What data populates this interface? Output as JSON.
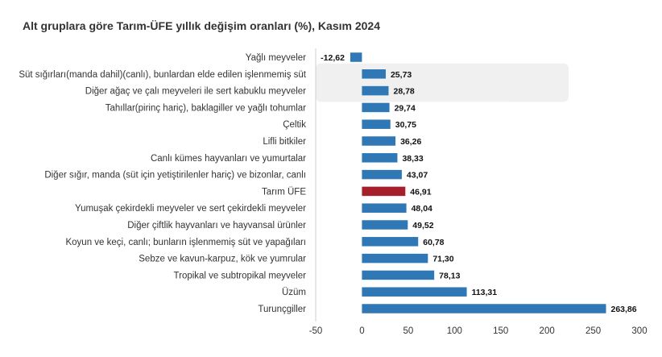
{
  "chart_data": {
    "type": "bar",
    "orientation": "horizontal",
    "title": "Alt gruplara göre Tarım-ÜFE yıllık değişim oranları (%), Kasım 2024",
    "xlabel": "",
    "ylabel": "",
    "xlim": [
      -50,
      300
    ],
    "xticks": [
      -50,
      0,
      50,
      100,
      150,
      200,
      250,
      300
    ],
    "grid": false,
    "legend": "none",
    "colors": {
      "bar": "#2f78b5",
      "highlight": "#a5202a",
      "band": "#f0f0f0"
    },
    "highlight_category": "Tarım ÜFE",
    "categories": [
      "Yağlı meyveler",
      "Süt sığırları(manda dahil)(canlı), bunlardan elde edilen işlenmemiş süt",
      "Diğer ağaç ve çalı meyveleri ile sert kabuklu meyveler",
      "Tahıllar(pirinç hariç), baklagiller ve yağlı tohumlar",
      "Çeltik",
      "Lifli bitkiler",
      "Canlı kümes hayvanları ve yumurtalar",
      "Diğer sığır, manda (süt için yetiştirilenler hariç) ve bizonlar, canlı",
      "Tarım ÜFE",
      "Yumuşak çekirdekli meyveler ve sert çekirdekli meyveler",
      "Diğer çiftlik hayvanları ve hayvansal ürünler",
      "Koyun ve keçi, canlı; bunların işlenmemiş süt ve yapağıları",
      "Sebze ve kavun-karpuz, kök ve yumrular",
      "Tropikal ve subtropikal meyveler",
      "Üzüm",
      "Turunçgiller"
    ],
    "values": [
      -12.62,
      25.73,
      28.78,
      29.74,
      30.75,
      36.26,
      38.33,
      43.07,
      46.91,
      48.04,
      49.52,
      60.78,
      71.3,
      78.13,
      113.31,
      263.86
    ],
    "value_labels": [
      "-12,62",
      "25,73",
      "28,78",
      "29,74",
      "30,75",
      "36,26",
      "38,33",
      "43,07",
      "46,91",
      "48,04",
      "49,52",
      "60,78",
      "71,30",
      "78,13",
      "113,31",
      "263,86"
    ],
    "tick_labels": [
      "-50",
      "0",
      "50",
      "100",
      "150",
      "200",
      "250",
      "300"
    ]
  }
}
